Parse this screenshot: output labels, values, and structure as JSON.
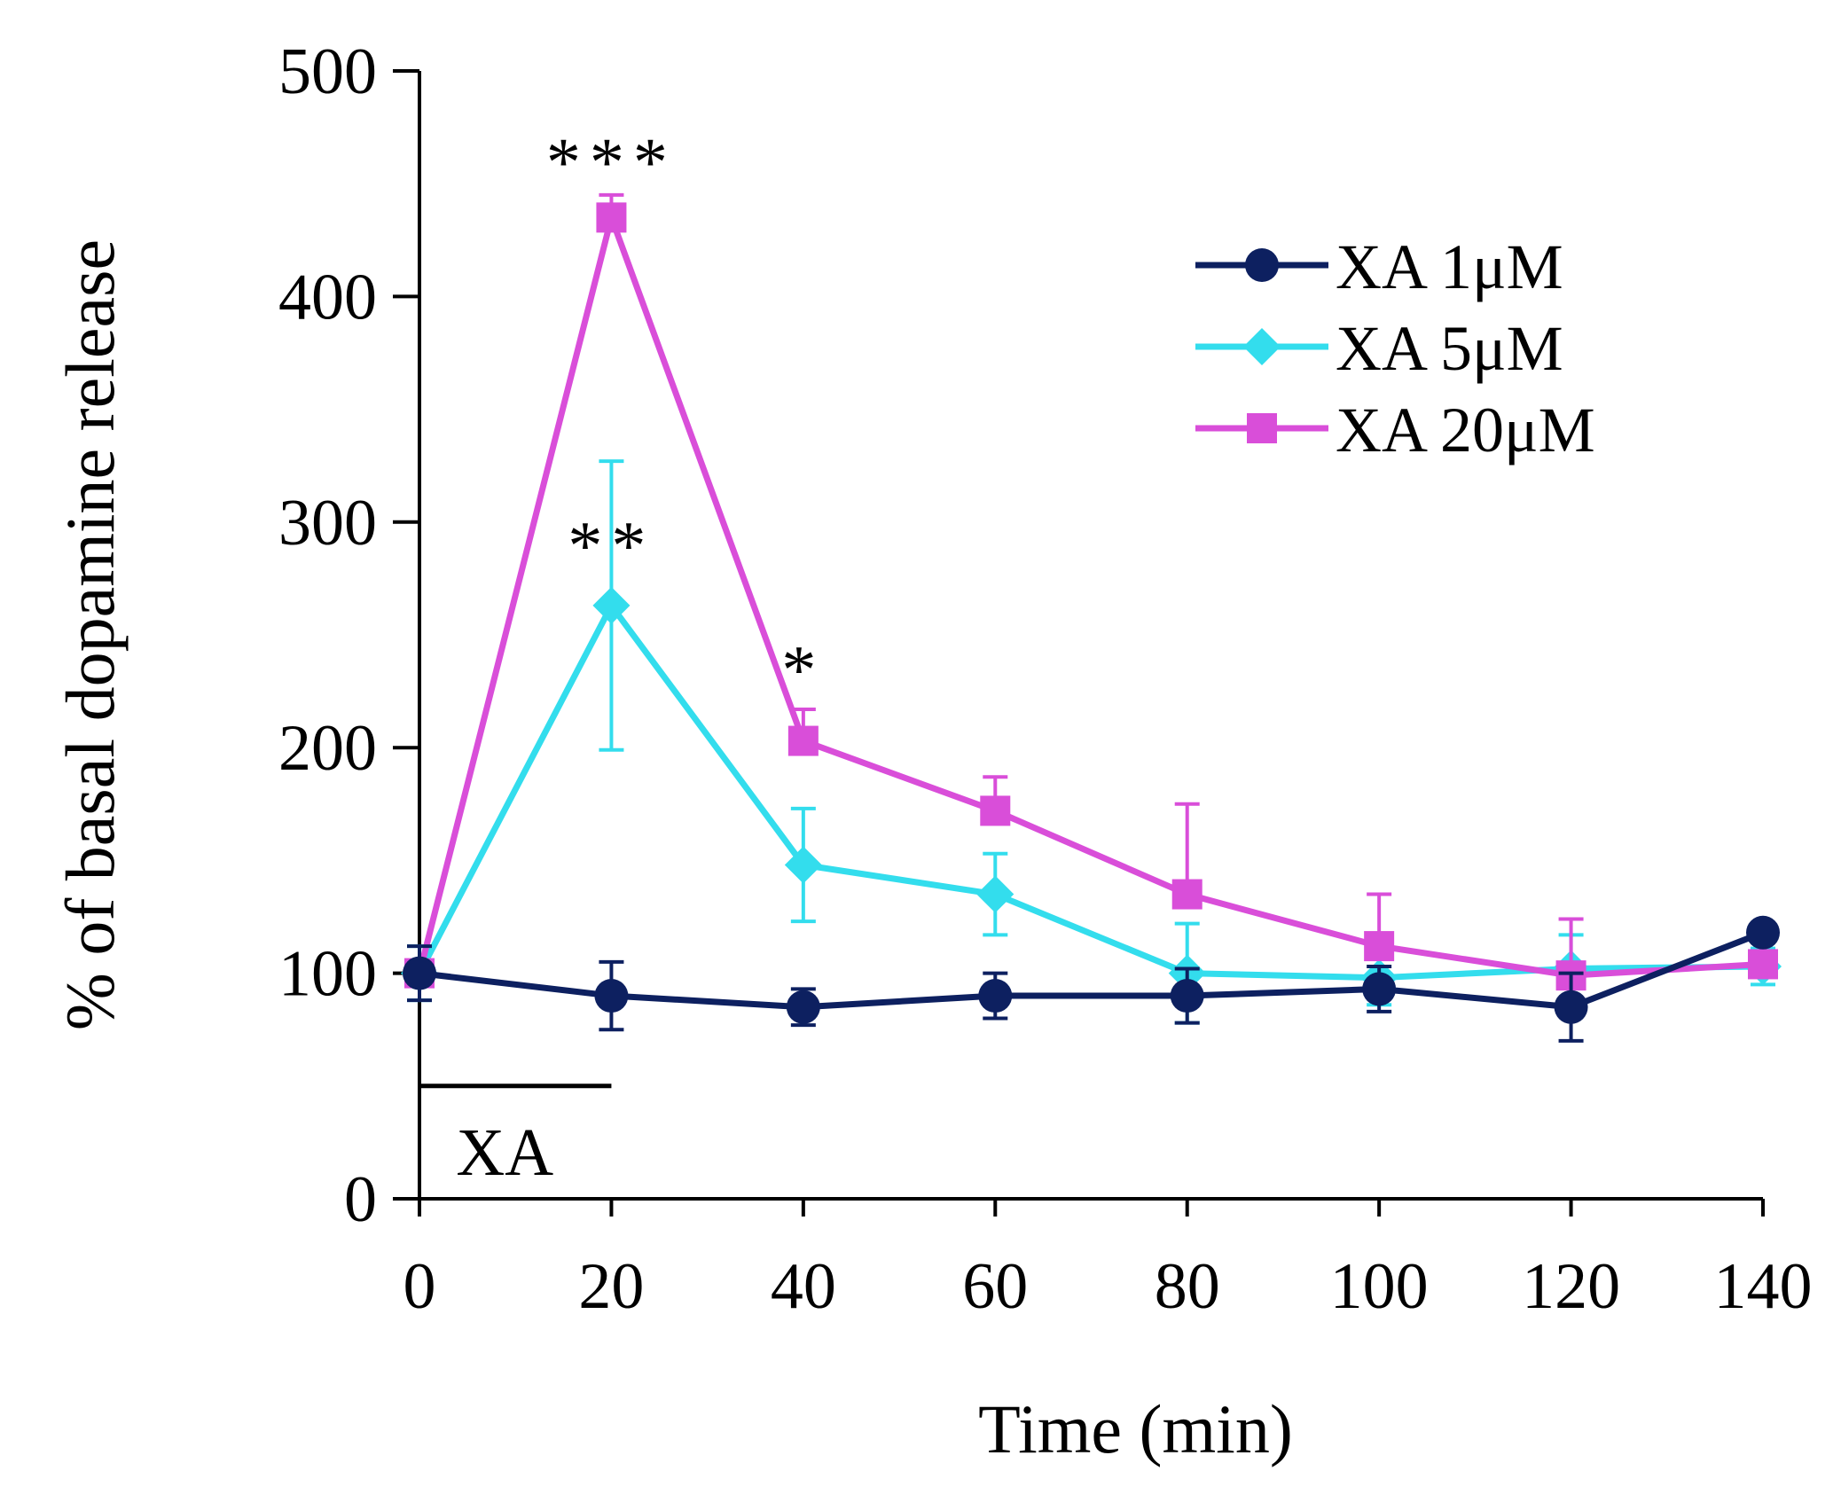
{
  "chart_data": {
    "type": "line",
    "title": "",
    "xlabel": "Time (min)",
    "ylabel": "% of basal dopamine release",
    "x": [
      0,
      20,
      40,
      60,
      80,
      100,
      120,
      140
    ],
    "xlim": [
      0,
      140
    ],
    "ylim": [
      0,
      500
    ],
    "xticks": [
      "0",
      "20",
      "40",
      "60",
      "80",
      "100",
      "120",
      "140"
    ],
    "yticks": [
      "0",
      "100",
      "200",
      "300",
      "400",
      "500"
    ],
    "grid": false,
    "legend_position": "top-right",
    "series": [
      {
        "name": "XA 1μM",
        "color": "#0d2060",
        "marker": "circle",
        "values": [
          100,
          90,
          85,
          90,
          90,
          93,
          85,
          118
        ],
        "errors": [
          12,
          15,
          8,
          10,
          12,
          10,
          15,
          3
        ]
      },
      {
        "name": "XA 5μM",
        "color": "#33dded",
        "marker": "diamond",
        "values": [
          100,
          263,
          148,
          135,
          100,
          98,
          102,
          103
        ],
        "errors": [
          12,
          64,
          25,
          18,
          22,
          12,
          15,
          8
        ]
      },
      {
        "name": "XA 20μM",
        "color": "#d94ed9",
        "marker": "square",
        "values": [
          100,
          435,
          203,
          172,
          135,
          112,
          99,
          104
        ],
        "errors": [
          3,
          10,
          14,
          15,
          40,
          23,
          25,
          5
        ]
      }
    ],
    "annotations": [
      {
        "text": "***",
        "x": 20,
        "y": 465
      },
      {
        "text": "**",
        "x": 20,
        "y": 295
      },
      {
        "text": "*",
        "x": 40,
        "y": 240
      }
    ],
    "treatment_bar": {
      "label": "XA",
      "x_start": 0,
      "x_end": 20,
      "y": 50
    }
  }
}
